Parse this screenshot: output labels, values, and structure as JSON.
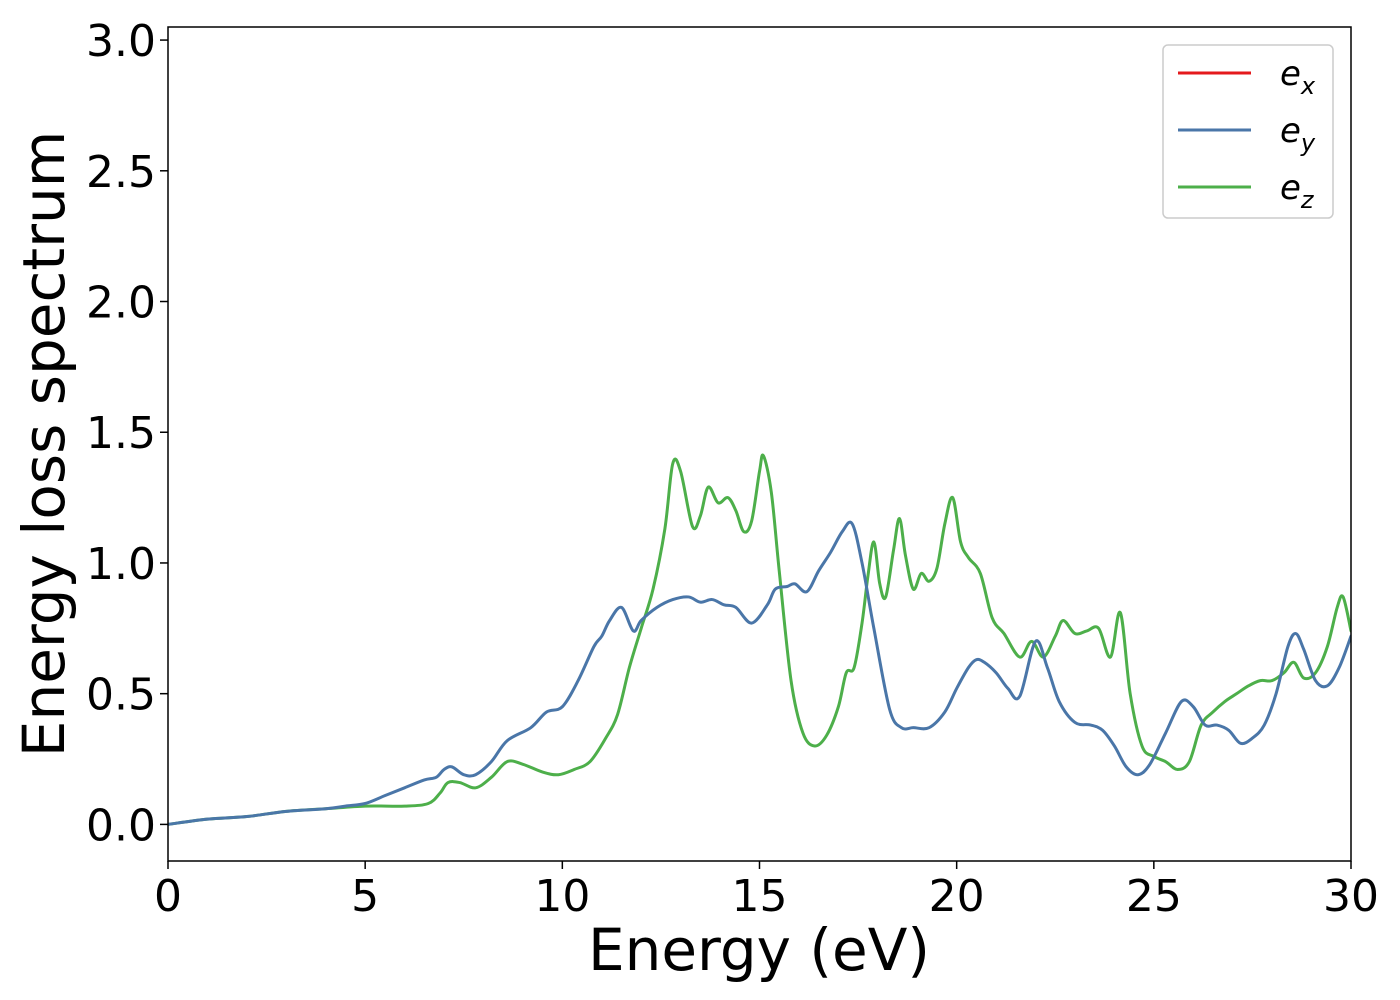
{
  "chart_data": {
    "type": "line",
    "title": "",
    "xlabel": "Energy (eV)",
    "ylabel": "Energy loss spectrum",
    "xlim": [
      0,
      30
    ],
    "ylim": [
      -0.14,
      3.05
    ],
    "xticks": [
      0,
      5,
      10,
      15,
      20,
      25,
      30
    ],
    "yticks": [
      0.0,
      0.5,
      1.0,
      1.5,
      2.0,
      2.5,
      3.0
    ],
    "x_tick_labels": [
      "0",
      "5",
      "10",
      "15",
      "20",
      "25",
      "30"
    ],
    "y_tick_labels": [
      "0.0",
      "0.5",
      "1.0",
      "1.5",
      "2.0",
      "2.5",
      "3.0"
    ],
    "grid": false,
    "legend_position": "top-right",
    "series": [
      {
        "name": "e",
        "sub": "x",
        "color": "#e41a1c",
        "legend_only": true,
        "x": [
          0,
          30
        ],
        "y": [
          0,
          0
        ]
      },
      {
        "name": "e",
        "sub": "y",
        "color": "#4a76a8",
        "x": [
          0,
          1,
          2,
          3,
          4,
          4.5,
          5,
          5.5,
          6,
          6.5,
          6.8,
          7,
          7.2,
          7.5,
          7.8,
          8.2,
          8.6,
          9.2,
          9.6,
          10,
          10.4,
          10.8,
          11,
          11.2,
          11.5,
          11.8,
          12,
          12.4,
          12.8,
          13.2,
          13.5,
          13.8,
          14.1,
          14.4,
          14.8,
          15.2,
          15.4,
          15.7,
          15.9,
          16.2,
          16.5,
          16.8,
          17.1,
          17.35,
          17.6,
          17.9,
          18.3,
          18.6,
          18.9,
          19.3,
          19.7,
          20,
          20.3,
          20.5,
          20.7,
          21,
          21.3,
          21.6,
          22,
          22.3,
          22.6,
          23,
          23.4,
          23.7,
          24,
          24.3,
          24.6,
          24.9,
          25.3,
          25.7,
          26,
          26.3,
          26.6,
          26.9,
          27.2,
          27.5,
          27.8,
          28.1,
          28.4,
          28.6,
          28.8,
          29.1,
          29.4,
          29.7,
          30
        ],
        "y": [
          0.0,
          0.02,
          0.03,
          0.05,
          0.06,
          0.07,
          0.08,
          0.11,
          0.14,
          0.17,
          0.18,
          0.21,
          0.22,
          0.19,
          0.19,
          0.24,
          0.32,
          0.37,
          0.43,
          0.45,
          0.55,
          0.68,
          0.72,
          0.78,
          0.83,
          0.74,
          0.78,
          0.83,
          0.86,
          0.87,
          0.85,
          0.86,
          0.84,
          0.83,
          0.77,
          0.84,
          0.9,
          0.91,
          0.92,
          0.89,
          0.97,
          1.04,
          1.12,
          1.15,
          1.0,
          0.75,
          0.44,
          0.37,
          0.37,
          0.37,
          0.43,
          0.52,
          0.6,
          0.63,
          0.62,
          0.58,
          0.52,
          0.49,
          0.7,
          0.6,
          0.47,
          0.39,
          0.38,
          0.36,
          0.3,
          0.22,
          0.19,
          0.23,
          0.35,
          0.47,
          0.45,
          0.38,
          0.38,
          0.36,
          0.31,
          0.33,
          0.38,
          0.5,
          0.68,
          0.73,
          0.67,
          0.55,
          0.53,
          0.6,
          0.72
        ]
      },
      {
        "name": "e",
        "sub": "z",
        "color": "#4daf4a",
        "x": [
          0,
          1,
          2,
          3,
          4,
          5,
          6,
          6.6,
          6.9,
          7.1,
          7.4,
          7.8,
          8.2,
          8.6,
          9,
          9.5,
          9.9,
          10.3,
          10.7,
          11.1,
          11.4,
          11.7,
          12,
          12.3,
          12.6,
          12.8,
          13,
          13.3,
          13.5,
          13.7,
          13.95,
          14.2,
          14.4,
          14.6,
          14.8,
          15.0,
          15.1,
          15.3,
          15.5,
          15.8,
          16.1,
          16.4,
          16.7,
          17,
          17.2,
          17.4,
          17.6,
          17.75,
          17.9,
          18.05,
          18.2,
          18.4,
          18.55,
          18.7,
          18.9,
          19.1,
          19.3,
          19.5,
          19.7,
          19.9,
          20.1,
          20.3,
          20.6,
          20.9,
          21.2,
          21.6,
          21.9,
          22.2,
          22.5,
          22.7,
          23,
          23.3,
          23.6,
          23.9,
          24.15,
          24.4,
          24.7,
          25,
          25.3,
          25.6,
          25.9,
          26.2,
          26.5,
          26.8,
          27.1,
          27.4,
          27.7,
          28,
          28.3,
          28.55,
          28.8,
          29.1,
          29.4,
          29.65,
          29.8,
          30
        ],
        "y": [
          0.0,
          0.02,
          0.03,
          0.05,
          0.06,
          0.07,
          0.07,
          0.08,
          0.12,
          0.16,
          0.16,
          0.14,
          0.18,
          0.24,
          0.23,
          0.2,
          0.19,
          0.21,
          0.24,
          0.33,
          0.42,
          0.6,
          0.75,
          0.9,
          1.13,
          1.38,
          1.35,
          1.14,
          1.18,
          1.29,
          1.23,
          1.25,
          1.2,
          1.12,
          1.16,
          1.35,
          1.41,
          1.27,
          0.97,
          0.55,
          0.35,
          0.3,
          0.34,
          0.45,
          0.58,
          0.6,
          0.77,
          0.95,
          1.08,
          0.92,
          0.87,
          1.05,
          1.17,
          1.03,
          0.9,
          0.96,
          0.93,
          0.98,
          1.15,
          1.25,
          1.08,
          1.02,
          0.96,
          0.79,
          0.73,
          0.64,
          0.7,
          0.64,
          0.72,
          0.78,
          0.73,
          0.74,
          0.75,
          0.64,
          0.81,
          0.5,
          0.3,
          0.26,
          0.24,
          0.21,
          0.24,
          0.38,
          0.43,
          0.47,
          0.5,
          0.53,
          0.55,
          0.55,
          0.58,
          0.62,
          0.56,
          0.58,
          0.68,
          0.83,
          0.87,
          0.74
        ]
      }
    ]
  }
}
